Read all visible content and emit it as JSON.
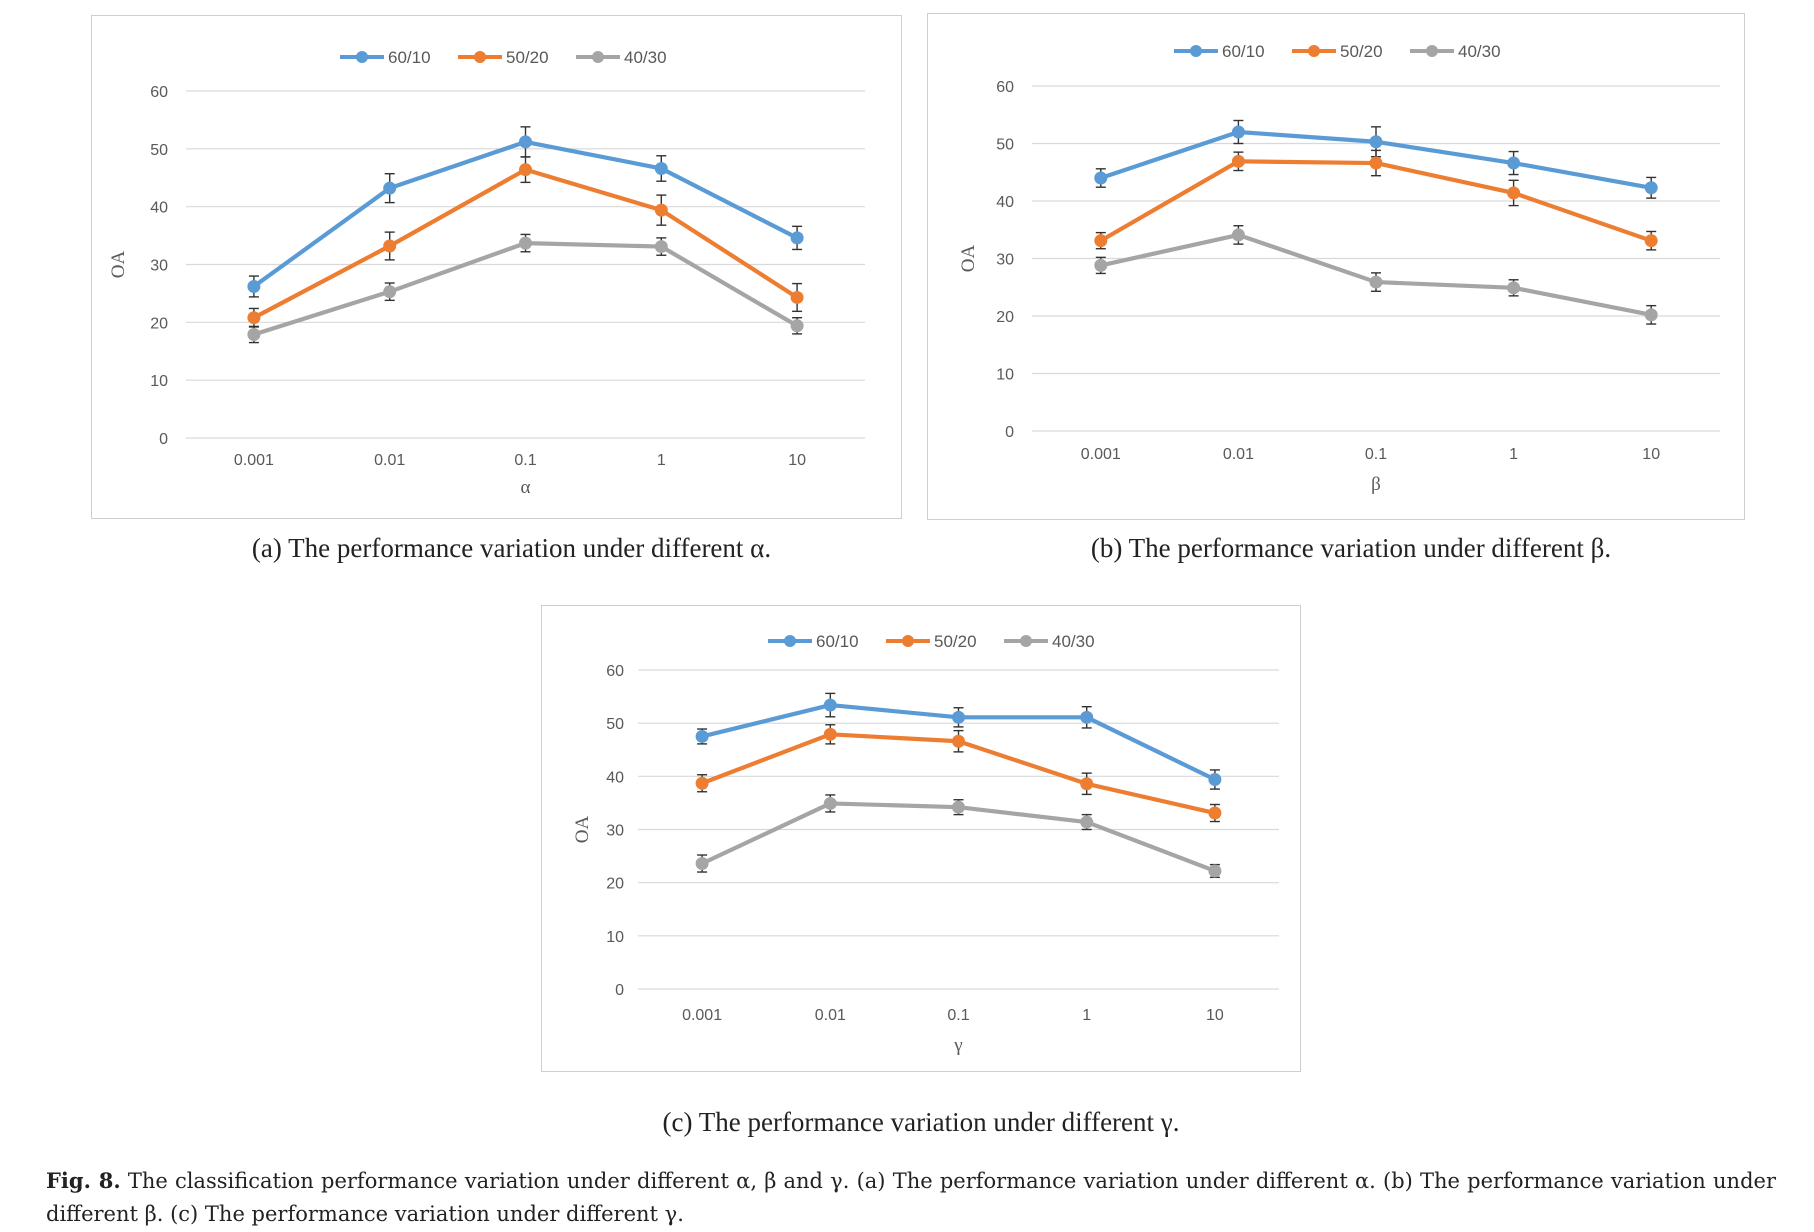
{
  "chart_data": [
    {
      "type": "line",
      "ylabel": "OA",
      "xlabel": "α",
      "x": [
        "0.001",
        "0.01",
        "0.1",
        "1",
        "10"
      ],
      "ylim": [
        0,
        60
      ],
      "yticks": [
        "0",
        "10",
        "20",
        "30",
        "40",
        "50",
        "60"
      ],
      "grid": true,
      "error_bars": true,
      "legend_position": "top",
      "series": [
        {
          "name": "60/10",
          "color": "#5b9bd5",
          "values": [
            26.2,
            43.2,
            51.2,
            46.6,
            34.6
          ],
          "errors": [
            1.8,
            2.5,
            2.6,
            2.2,
            2.0
          ]
        },
        {
          "name": "50/20",
          "color": "#ed7d31",
          "values": [
            20.8,
            33.2,
            46.4,
            39.4,
            24.3
          ],
          "errors": [
            1.6,
            2.4,
            2.2,
            2.6,
            2.4
          ]
        },
        {
          "name": "40/30",
          "color": "#a5a5a5",
          "values": [
            17.9,
            25.3,
            33.7,
            33.1,
            19.4
          ],
          "errors": [
            1.4,
            1.5,
            1.5,
            1.5,
            1.4
          ]
        }
      ],
      "caption": "(a) The performance variation under different α."
    },
    {
      "type": "line",
      "ylabel": "OA",
      "xlabel": "β",
      "x": [
        "0.001",
        "0.01",
        "0.1",
        "1",
        "10"
      ],
      "ylim": [
        0,
        60
      ],
      "yticks": [
        "0",
        "10",
        "20",
        "30",
        "40",
        "50",
        "60"
      ],
      "grid": true,
      "error_bars": true,
      "legend_position": "top",
      "series": [
        {
          "name": "60/10",
          "color": "#5b9bd5",
          "values": [
            44.0,
            52.0,
            50.3,
            46.6,
            42.3
          ],
          "errors": [
            1.6,
            2.0,
            2.6,
            2.0,
            1.8
          ]
        },
        {
          "name": "50/20",
          "color": "#ed7d31",
          "values": [
            33.1,
            46.9,
            46.6,
            41.4,
            33.1
          ],
          "errors": [
            1.4,
            1.6,
            2.2,
            2.2,
            1.6
          ]
        },
        {
          "name": "40/30",
          "color": "#a5a5a5",
          "values": [
            28.8,
            34.1,
            25.9,
            24.9,
            20.2
          ],
          "errors": [
            1.4,
            1.6,
            1.6,
            1.4,
            1.6
          ]
        }
      ],
      "caption": "(b) The performance variation under different β."
    },
    {
      "type": "line",
      "ylabel": "OA",
      "xlabel": "γ",
      "x": [
        "0.001",
        "0.01",
        "0.1",
        "1",
        "10"
      ],
      "ylim": [
        0,
        60
      ],
      "yticks": [
        "0",
        "10",
        "20",
        "30",
        "40",
        "50",
        "60"
      ],
      "grid": true,
      "error_bars": true,
      "legend_position": "top",
      "series": [
        {
          "name": "60/10",
          "color": "#5b9bd5",
          "values": [
            47.5,
            53.4,
            51.1,
            51.1,
            39.4
          ],
          "errors": [
            1.4,
            2.2,
            1.8,
            2.0,
            1.8
          ]
        },
        {
          "name": "50/20",
          "color": "#ed7d31",
          "values": [
            38.7,
            47.9,
            46.6,
            38.6,
            33.1
          ],
          "errors": [
            1.6,
            1.8,
            2.0,
            2.0,
            1.6
          ]
        },
        {
          "name": "40/30",
          "color": "#a5a5a5",
          "values": [
            23.6,
            34.9,
            34.2,
            31.4,
            22.2
          ],
          "errors": [
            1.6,
            1.6,
            1.4,
            1.4,
            1.2
          ]
        }
      ],
      "caption": "(c) The performance variation under different γ."
    }
  ],
  "figure_caption": {
    "label": "Fig. 8.",
    "text": "The classification performance variation under different α, β and γ. (a) The performance variation under different α. (b) The performance variation under different β. (c) The performance variation under different γ."
  }
}
